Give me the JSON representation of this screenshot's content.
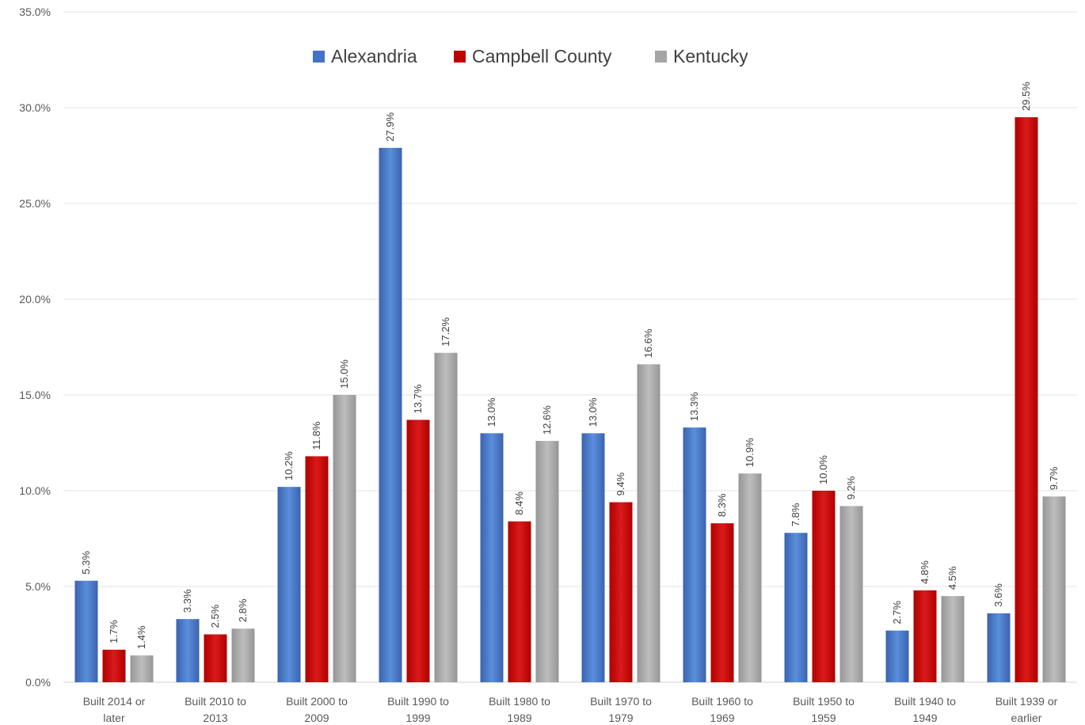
{
  "chart_data": {
    "type": "bar",
    "categories": [
      [
        "Built 2014 or",
        "later"
      ],
      [
        "Built 2010 to",
        "2013"
      ],
      [
        "Built 2000 to",
        "2009"
      ],
      [
        "Built 1990 to",
        "1999"
      ],
      [
        "Built 1980 to",
        "1989"
      ],
      [
        "Built 1970 to",
        "1979"
      ],
      [
        "Built 1960 to",
        "1969"
      ],
      [
        "Built 1950 to",
        "1959"
      ],
      [
        "Built 1940 to",
        "1949"
      ],
      [
        "Built 1939 or",
        "earlier"
      ]
    ],
    "series": [
      {
        "name": "Alexandria",
        "color": "#4472C4",
        "values": [
          5.3,
          3.3,
          10.2,
          27.9,
          13.0,
          13.0,
          13.3,
          7.8,
          2.7,
          3.6
        ],
        "labels": [
          "5.3%",
          "3.3%",
          "10.2%",
          "27.9%",
          "13.0%",
          "13.0%",
          "13.3%",
          "7.8%",
          "2.7%",
          "3.6%"
        ]
      },
      {
        "name": "Campbell County",
        "color": "#C00000",
        "values": [
          1.7,
          2.5,
          11.8,
          13.7,
          8.4,
          9.4,
          8.3,
          10.0,
          4.8,
          29.5
        ],
        "labels": [
          "1.7%",
          "2.5%",
          "11.8%",
          "13.7%",
          "8.4%",
          "9.4%",
          "8.3%",
          "10.0%",
          "4.8%",
          "29.5%"
        ]
      },
      {
        "name": "Kentucky",
        "color": "#A5A5A5",
        "values": [
          1.4,
          2.8,
          15.0,
          17.2,
          12.6,
          16.6,
          10.9,
          9.2,
          4.5,
          9.7
        ],
        "labels": [
          "1.4%",
          "2.8%",
          "15.0%",
          "17.2%",
          "12.6%",
          "16.6%",
          "10.9%",
          "9.2%",
          "4.5%",
          "9.7%"
        ]
      }
    ],
    "ylim": [
      0,
      35
    ],
    "yticks": [
      0,
      5,
      10,
      15,
      20,
      25,
      30,
      35
    ],
    "ytick_labels": [
      "0.0%",
      "5.0%",
      "10.0%",
      "15.0%",
      "20.0%",
      "25.0%",
      "30.0%",
      "35.0%"
    ],
    "grid": true,
    "legend_position": "top-center",
    "title": "",
    "xlabel": "",
    "ylabel": ""
  }
}
